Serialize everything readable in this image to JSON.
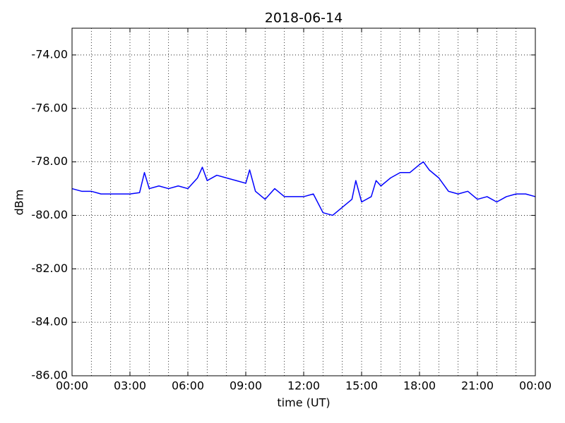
{
  "chart_data": {
    "type": "line",
    "title": "2018-06-14",
    "x_label": "time (UT)",
    "y_label": "dBm",
    "x": [
      0,
      0.5,
      1,
      1.5,
      2,
      2.5,
      3,
      3.5,
      3.75,
      4,
      4.5,
      5,
      5.5,
      6,
      6.5,
      6.75,
      7,
      7.5,
      8,
      8.5,
      9,
      9.2,
      9.5,
      10,
      10.5,
      11,
      11.5,
      12,
      12.5,
      13,
      13.5,
      14,
      14.5,
      14.7,
      15,
      15.5,
      15.75,
      16,
      16.5,
      17,
      17.5,
      18,
      18.2,
      18.5,
      19,
      19.5,
      20,
      20.5,
      21,
      21.5,
      22,
      22.5,
      23,
      23.5,
      24
    ],
    "series": [
      {
        "name": "dBm",
        "color": "#0000ff",
        "values": [
          -79.0,
          -79.1,
          -79.1,
          -79.2,
          -79.2,
          -79.2,
          -79.2,
          -79.15,
          -78.4,
          -79.0,
          -78.9,
          -79.0,
          -78.9,
          -79.0,
          -78.6,
          -78.2,
          -78.7,
          -78.5,
          -78.6,
          -78.7,
          -78.8,
          -78.3,
          -79.1,
          -79.4,
          -79.0,
          -79.3,
          -79.3,
          -79.3,
          -79.2,
          -79.9,
          -80.0,
          -79.7,
          -79.4,
          -78.7,
          -79.5,
          -79.3,
          -78.7,
          -78.9,
          -78.6,
          -78.4,
          -78.4,
          -78.1,
          -78.0,
          -78.3,
          -78.6,
          -79.1,
          -79.2,
          -79.1,
          -79.4,
          -79.3,
          -79.5,
          -79.3,
          -79.2,
          -79.2,
          -79.3
        ]
      }
    ],
    "xlim": [
      0,
      24
    ],
    "xticks": [
      {
        "value": 0,
        "label": "00:00"
      },
      {
        "value": 3,
        "label": "03:00"
      },
      {
        "value": 6,
        "label": "06:00"
      },
      {
        "value": 9,
        "label": "09:00"
      },
      {
        "value": 12,
        "label": "12:00"
      },
      {
        "value": 15,
        "label": "15:00"
      },
      {
        "value": 18,
        "label": "18:00"
      },
      {
        "value": 21,
        "label": "21:00"
      },
      {
        "value": 24,
        "label": "00:00"
      }
    ],
    "xminorticks": [
      1,
      2,
      4,
      5,
      7,
      8,
      10,
      11,
      13,
      14,
      16,
      17,
      19,
      20,
      22,
      23
    ],
    "ylim": [
      -86,
      -73
    ],
    "yticks": [
      {
        "value": -86,
        "label": "-86.00"
      },
      {
        "value": -84,
        "label": "-84.00"
      },
      {
        "value": -82,
        "label": "-82.00"
      },
      {
        "value": -80,
        "label": "-80.00"
      },
      {
        "value": -78,
        "label": "-78.00"
      },
      {
        "value": -76,
        "label": "-76.00"
      },
      {
        "value": -74,
        "label": "-74.00"
      }
    ],
    "grid": true
  }
}
